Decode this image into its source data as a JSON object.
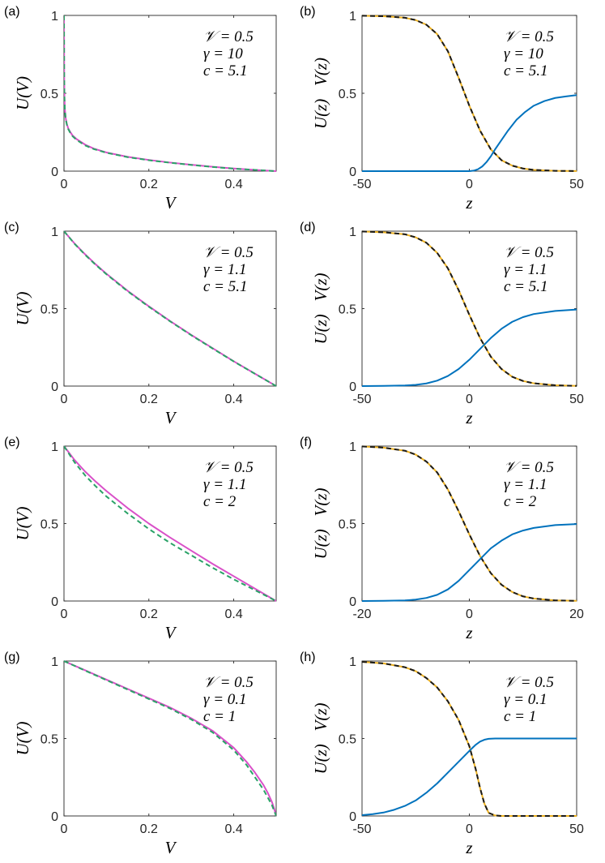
{
  "colors": {
    "blue": "#0072bd",
    "orange": "#edb120",
    "black_dashed": "#1a1a1a",
    "magenta": "#d950c8",
    "green_dashed": "#2aa267",
    "axis": "#262626"
  },
  "chart_data": [
    {
      "panel": "(a)",
      "type": "line",
      "xlabel": "V",
      "ylabel": "U(V)",
      "xlim": [
        0,
        0.5
      ],
      "ylim": [
        0,
        1
      ],
      "xticks": [
        0,
        0.2,
        0.4
      ],
      "xtick_labels": [
        "0",
        "0.2",
        "0.4"
      ],
      "yticks": [
        0,
        0.5,
        1
      ],
      "ytick_labels": [
        "0",
        "0.5",
        "1"
      ],
      "annotation": [
        "𝒱 = 0.5",
        "γ = 10",
        "c = 5.1"
      ],
      "series": [
        {
          "style": "solid",
          "color": "magenta",
          "x": [
            0,
            0.0005,
            0.001,
            0.002,
            0.004,
            0.007,
            0.01,
            0.015,
            0.02,
            0.03,
            0.05,
            0.07,
            0.1,
            0.15,
            0.2,
            0.25,
            0.3,
            0.35,
            0.4,
            0.45,
            0.5
          ],
          "y": [
            1,
            0.6,
            0.48,
            0.4,
            0.34,
            0.3,
            0.275,
            0.25,
            0.23,
            0.205,
            0.17,
            0.145,
            0.12,
            0.092,
            0.072,
            0.055,
            0.041,
            0.028,
            0.017,
            0.008,
            0
          ]
        },
        {
          "style": "dashed",
          "color": "green_dashed",
          "x": [
            0,
            0.0005,
            0.001,
            0.002,
            0.004,
            0.007,
            0.01,
            0.015,
            0.02,
            0.03,
            0.05,
            0.07,
            0.1,
            0.15,
            0.2,
            0.25,
            0.3,
            0.35,
            0.4,
            0.45,
            0.5
          ],
          "y": [
            1,
            0.6,
            0.48,
            0.4,
            0.335,
            0.295,
            0.27,
            0.245,
            0.225,
            0.2,
            0.165,
            0.142,
            0.118,
            0.09,
            0.07,
            0.054,
            0.04,
            0.027,
            0.016,
            0.008,
            0
          ]
        }
      ]
    },
    {
      "panel": "(b)",
      "type": "line",
      "xlabel": "z",
      "ylabel": "U(z)   V(z)",
      "xlim": [
        -50,
        50
      ],
      "ylim": [
        0,
        1
      ],
      "xticks": [
        -50,
        0,
        50
      ],
      "xtick_labels": [
        "-50",
        "0",
        "50"
      ],
      "yticks": [
        0,
        0.5,
        1
      ],
      "ytick_labels": [
        "0",
        "0.5",
        "1"
      ],
      "annotation": [
        "𝒱 = 0.5",
        "γ = 10",
        "c = 5.1"
      ],
      "series": [
        {
          "style": "solid",
          "color": "orange",
          "x": [
            -50,
            -40,
            -30,
            -25,
            -20,
            -15,
            -10,
            -5,
            0,
            5,
            10,
            15,
            20,
            25,
            30,
            40,
            50
          ],
          "y": [
            0.998,
            0.995,
            0.985,
            0.97,
            0.94,
            0.88,
            0.77,
            0.6,
            0.42,
            0.26,
            0.14,
            0.07,
            0.035,
            0.017,
            0.008,
            0.002,
            0.0005
          ]
        },
        {
          "style": "dashed",
          "color": "black_dashed",
          "x": [
            -50,
            -40,
            -30,
            -25,
            -20,
            -15,
            -10,
            -5,
            0,
            5,
            10,
            15,
            20,
            25,
            30,
            40,
            50
          ],
          "y": [
            0.998,
            0.995,
            0.985,
            0.97,
            0.94,
            0.88,
            0.77,
            0.6,
            0.42,
            0.26,
            0.14,
            0.07,
            0.035,
            0.017,
            0.008,
            0.002,
            0.0005
          ]
        },
        {
          "style": "solid",
          "color": "blue",
          "x": [
            -50,
            -20,
            0,
            2,
            4,
            6,
            8,
            10,
            12,
            15,
            18,
            22,
            26,
            30,
            35,
            40,
            45,
            50
          ],
          "y": [
            0,
            0,
            0,
            0.003,
            0.012,
            0.03,
            0.058,
            0.095,
            0.14,
            0.2,
            0.26,
            0.33,
            0.38,
            0.42,
            0.45,
            0.47,
            0.48,
            0.488
          ]
        }
      ]
    },
    {
      "panel": "(c)",
      "type": "line",
      "xlabel": "V",
      "ylabel": "U(V)",
      "xlim": [
        0,
        0.5
      ],
      "ylim": [
        0,
        1
      ],
      "xticks": [
        0,
        0.2,
        0.4
      ],
      "xtick_labels": [
        "0",
        "0.2",
        "0.4"
      ],
      "yticks": [
        0,
        0.5,
        1
      ],
      "ytick_labels": [
        "0",
        "0.5",
        "1"
      ],
      "annotation": [
        "𝒱 = 0.5",
        "γ = 1.1",
        "c = 5.1"
      ],
      "series": [
        {
          "style": "solid",
          "color": "magenta",
          "x": [
            0,
            0.025,
            0.05,
            0.075,
            0.1,
            0.15,
            0.2,
            0.25,
            0.3,
            0.35,
            0.4,
            0.45,
            0.5
          ],
          "y": [
            1,
            0.92,
            0.85,
            0.785,
            0.725,
            0.615,
            0.515,
            0.42,
            0.33,
            0.245,
            0.16,
            0.08,
            0
          ]
        },
        {
          "style": "dashed",
          "color": "green_dashed",
          "x": [
            0,
            0.025,
            0.05,
            0.075,
            0.1,
            0.15,
            0.2,
            0.25,
            0.3,
            0.35,
            0.4,
            0.45,
            0.5
          ],
          "y": [
            1,
            0.918,
            0.847,
            0.782,
            0.722,
            0.612,
            0.512,
            0.418,
            0.328,
            0.243,
            0.159,
            0.079,
            0
          ]
        }
      ]
    },
    {
      "panel": "(d)",
      "type": "line",
      "xlabel": "z",
      "ylabel": "U(z)   V(z)",
      "xlim": [
        -50,
        50
      ],
      "ylim": [
        0,
        1
      ],
      "xticks": [
        -50,
        0,
        50
      ],
      "xtick_labels": [
        "-50",
        "0",
        "50"
      ],
      "yticks": [
        0,
        0.5,
        1
      ],
      "ytick_labels": [
        "0",
        "0.5",
        "1"
      ],
      "annotation": [
        "𝒱 = 0.5",
        "γ = 1.1",
        "c = 5.1"
      ],
      "series": [
        {
          "style": "solid",
          "color": "orange",
          "x": [
            -50,
            -40,
            -30,
            -25,
            -20,
            -15,
            -10,
            -5,
            0,
            5,
            10,
            15,
            20,
            25,
            30,
            40,
            50
          ],
          "y": [
            0.998,
            0.993,
            0.98,
            0.96,
            0.925,
            0.86,
            0.76,
            0.62,
            0.46,
            0.31,
            0.19,
            0.11,
            0.06,
            0.033,
            0.018,
            0.005,
            0.001
          ]
        },
        {
          "style": "dashed",
          "color": "black_dashed",
          "x": [
            -50,
            -40,
            -30,
            -25,
            -20,
            -15,
            -10,
            -5,
            0,
            5,
            10,
            15,
            20,
            25,
            30,
            40,
            50
          ],
          "y": [
            0.998,
            0.993,
            0.98,
            0.96,
            0.925,
            0.86,
            0.76,
            0.62,
            0.46,
            0.31,
            0.19,
            0.11,
            0.06,
            0.033,
            0.018,
            0.005,
            0.001
          ]
        },
        {
          "style": "solid",
          "color": "blue",
          "x": [
            -50,
            -40,
            -30,
            -25,
            -20,
            -15,
            -10,
            -5,
            0,
            5,
            10,
            15,
            20,
            25,
            30,
            40,
            50
          ],
          "y": [
            0,
            0.001,
            0.004,
            0.008,
            0.017,
            0.035,
            0.065,
            0.11,
            0.17,
            0.24,
            0.31,
            0.37,
            0.415,
            0.445,
            0.465,
            0.485,
            0.494
          ]
        }
      ]
    },
    {
      "panel": "(e)",
      "type": "line",
      "xlabel": "V",
      "ylabel": "U(V)",
      "xlim": [
        0,
        0.5
      ],
      "ylim": [
        0,
        1
      ],
      "xticks": [
        0,
        0.2,
        0.4
      ],
      "xtick_labels": [
        "0",
        "0.2",
        "0.4"
      ],
      "yticks": [
        0,
        0.5,
        1
      ],
      "ytick_labels": [
        "0",
        "0.5",
        "1"
      ],
      "annotation": [
        "𝒱 = 0.5",
        "γ = 1.1",
        "c = 2"
      ],
      "series": [
        {
          "style": "solid",
          "color": "magenta",
          "x": [
            0,
            0.025,
            0.05,
            0.075,
            0.1,
            0.15,
            0.2,
            0.25,
            0.3,
            0.35,
            0.4,
            0.45,
            0.5
          ],
          "y": [
            1,
            0.91,
            0.835,
            0.77,
            0.71,
            0.6,
            0.5,
            0.41,
            0.325,
            0.24,
            0.16,
            0.08,
            0
          ]
        },
        {
          "style": "dashed",
          "color": "green_dashed",
          "x": [
            0,
            0.025,
            0.05,
            0.075,
            0.1,
            0.15,
            0.2,
            0.25,
            0.3,
            0.35,
            0.4,
            0.45,
            0.5
          ],
          "y": [
            1,
            0.895,
            0.81,
            0.74,
            0.675,
            0.565,
            0.465,
            0.375,
            0.295,
            0.215,
            0.14,
            0.07,
            0
          ]
        }
      ]
    },
    {
      "panel": "(f)",
      "type": "line",
      "xlabel": "z",
      "ylabel": "U(z)   V(z)",
      "xlim": [
        -20,
        20
      ],
      "ylim": [
        0,
        1
      ],
      "xticks": [
        -20,
        0,
        20
      ],
      "xtick_labels": [
        "-20",
        "0",
        "20"
      ],
      "yticks": [
        0,
        0.5,
        1
      ],
      "ytick_labels": [
        "0",
        "0.5",
        "1"
      ],
      "annotation": [
        "𝒱 = 0.5",
        "γ = 1.1",
        "c = 2"
      ],
      "series": [
        {
          "style": "solid",
          "color": "orange",
          "x": [
            -20,
            -16,
            -12,
            -10,
            -8,
            -6,
            -4,
            -2,
            0,
            2,
            4,
            6,
            8,
            10,
            12,
            16,
            20
          ],
          "y": [
            0.998,
            0.99,
            0.97,
            0.945,
            0.9,
            0.83,
            0.72,
            0.58,
            0.43,
            0.29,
            0.18,
            0.105,
            0.058,
            0.03,
            0.016,
            0.004,
            0.001
          ]
        },
        {
          "style": "dashed",
          "color": "black_dashed",
          "x": [
            -20,
            -16,
            -12,
            -10,
            -8,
            -6,
            -4,
            -2,
            0,
            2,
            4,
            6,
            8,
            10,
            12,
            16,
            20
          ],
          "y": [
            0.998,
            0.99,
            0.97,
            0.945,
            0.9,
            0.83,
            0.72,
            0.58,
            0.43,
            0.29,
            0.18,
            0.105,
            0.058,
            0.03,
            0.016,
            0.004,
            0.001
          ]
        },
        {
          "style": "solid",
          "color": "blue",
          "x": [
            -20,
            -16,
            -12,
            -10,
            -8,
            -6,
            -4,
            -2,
            0,
            2,
            4,
            6,
            8,
            10,
            12,
            16,
            20
          ],
          "y": [
            0,
            0.001,
            0.004,
            0.009,
            0.02,
            0.04,
            0.075,
            0.13,
            0.2,
            0.27,
            0.34,
            0.39,
            0.43,
            0.455,
            0.472,
            0.49,
            0.497
          ]
        }
      ]
    },
    {
      "panel": "(g)",
      "type": "line",
      "xlabel": "V",
      "ylabel": "U(V)",
      "xlim": [
        0,
        0.5
      ],
      "ylim": [
        0,
        1
      ],
      "xticks": [
        0,
        0.2,
        0.4
      ],
      "xtick_labels": [
        "0",
        "0.2",
        "0.4"
      ],
      "yticks": [
        0,
        0.5,
        1
      ],
      "ytick_labels": [
        "0",
        "0.5",
        "1"
      ],
      "annotation": [
        "𝒱 = 0.5",
        "γ = 0.1",
        "c = 1"
      ],
      "series": [
        {
          "style": "solid",
          "color": "magenta",
          "x": [
            0,
            0.05,
            0.1,
            0.15,
            0.2,
            0.25,
            0.3,
            0.35,
            0.4,
            0.43,
            0.45,
            0.47,
            0.48,
            0.49,
            0.495,
            0.5
          ],
          "y": [
            1,
            0.94,
            0.88,
            0.82,
            0.76,
            0.7,
            0.63,
            0.55,
            0.44,
            0.35,
            0.28,
            0.2,
            0.15,
            0.09,
            0.05,
            0
          ]
        },
        {
          "style": "dashed",
          "color": "green_dashed",
          "x": [
            0,
            0.05,
            0.1,
            0.15,
            0.2,
            0.25,
            0.3,
            0.35,
            0.4,
            0.43,
            0.45,
            0.47,
            0.48,
            0.49,
            0.495,
            0.5
          ],
          "y": [
            1,
            0.938,
            0.877,
            0.816,
            0.755,
            0.694,
            0.623,
            0.54,
            0.425,
            0.33,
            0.25,
            0.17,
            0.12,
            0.07,
            0.035,
            0
          ]
        }
      ]
    },
    {
      "panel": "(h)",
      "type": "line",
      "xlabel": "z",
      "ylabel": "U(z)   V(z)",
      "xlim": [
        -50,
        50
      ],
      "ylim": [
        0,
        1
      ],
      "xticks": [
        -50,
        0,
        50
      ],
      "xtick_labels": [
        "-50",
        "0",
        "50"
      ],
      "yticks": [
        0,
        0.5,
        1
      ],
      "ytick_labels": [
        "0",
        "0.5",
        "1"
      ],
      "annotation": [
        "𝒱 = 0.5",
        "γ = 0.1",
        "c = 1"
      ],
      "series": [
        {
          "style": "solid",
          "color": "orange",
          "x": [
            -50,
            -40,
            -30,
            -25,
            -20,
            -15,
            -10,
            -5,
            0,
            3,
            5,
            7,
            9,
            12,
            15,
            20,
            50
          ],
          "y": [
            0.995,
            0.985,
            0.96,
            0.935,
            0.89,
            0.83,
            0.74,
            0.62,
            0.45,
            0.3,
            0.18,
            0.08,
            0.02,
            0.003,
            0,
            0,
            0
          ]
        },
        {
          "style": "dashed",
          "color": "black_dashed",
          "x": [
            -50,
            -40,
            -30,
            -25,
            -20,
            -15,
            -10,
            -5,
            0,
            3,
            5,
            7,
            9,
            12,
            15,
            20,
            50
          ],
          "y": [
            0.995,
            0.985,
            0.96,
            0.935,
            0.89,
            0.83,
            0.74,
            0.62,
            0.45,
            0.3,
            0.18,
            0.08,
            0.02,
            0.003,
            0,
            0,
            0
          ]
        },
        {
          "style": "solid",
          "color": "blue",
          "x": [
            -50,
            -45,
            -40,
            -35,
            -30,
            -25,
            -20,
            -15,
            -10,
            -5,
            0,
            3,
            5,
            7,
            9,
            12,
            20,
            50
          ],
          "y": [
            0.005,
            0.012,
            0.022,
            0.04,
            0.065,
            0.1,
            0.15,
            0.21,
            0.28,
            0.35,
            0.42,
            0.46,
            0.48,
            0.492,
            0.498,
            0.5,
            0.5,
            0.5
          ]
        }
      ]
    }
  ]
}
